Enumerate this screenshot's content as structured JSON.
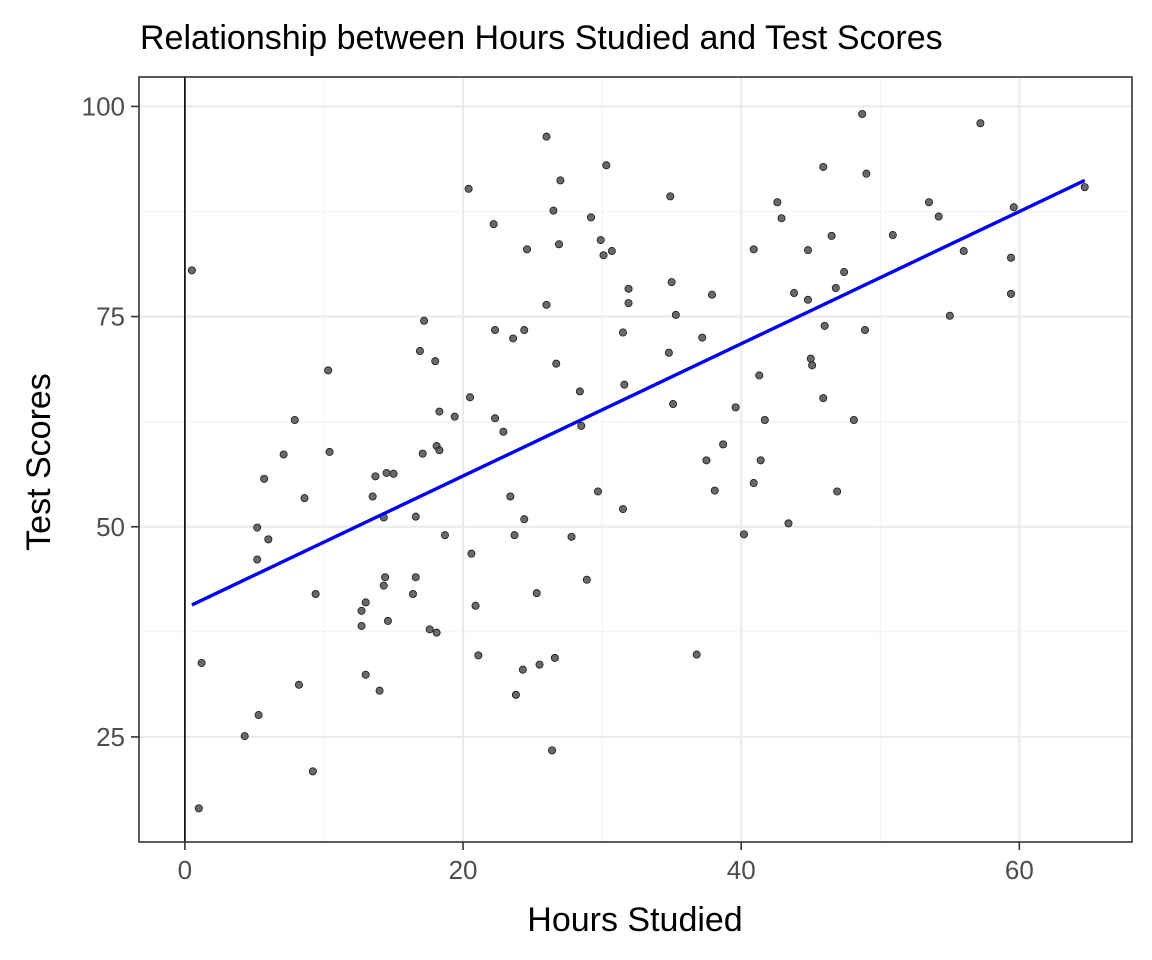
{
  "chart_data": {
    "type": "scatter",
    "title": "Relationship between Hours Studied and Test Scores",
    "xlabel": "Hours Studied",
    "ylabel": "Test Scores",
    "xlim": [
      -3.3,
      68.1
    ],
    "ylim": [
      12.5,
      103.5
    ],
    "x_ticks": [
      0,
      20,
      40,
      60
    ],
    "y_ticks": [
      25,
      50,
      75,
      100
    ],
    "grid": true,
    "legend": "none",
    "reference_vline_x": 0,
    "colors": {
      "points": "#4f4f4f",
      "fit_line": "#0000ff",
      "reference_line": "#000000"
    },
    "points": [
      [
        0.5,
        80.5
      ],
      [
        1.0,
        16.5
      ],
      [
        1.2,
        33.8
      ],
      [
        4.3,
        25.1
      ],
      [
        5.3,
        27.6
      ],
      [
        5.2,
        49.9
      ],
      [
        5.2,
        46.1
      ],
      [
        5.7,
        55.7
      ],
      [
        6.0,
        48.5
      ],
      [
        7.1,
        58.6
      ],
      [
        7.9,
        62.7
      ],
      [
        8.2,
        31.2
      ],
      [
        8.6,
        53.4
      ],
      [
        9.2,
        20.9
      ],
      [
        9.4,
        42.0
      ],
      [
        10.3,
        68.6
      ],
      [
        10.4,
        58.9
      ],
      [
        12.7,
        40.0
      ],
      [
        12.7,
        38.2
      ],
      [
        13.0,
        41.0
      ],
      [
        13.0,
        32.4
      ],
      [
        13.5,
        53.6
      ],
      [
        13.7,
        56.0
      ],
      [
        14.0,
        30.5
      ],
      [
        14.3,
        51.1
      ],
      [
        14.3,
        43.0
      ],
      [
        14.4,
        44.0
      ],
      [
        14.5,
        56.4
      ],
      [
        14.6,
        38.8
      ],
      [
        15.0,
        56.3
      ],
      [
        16.4,
        42.0
      ],
      [
        16.6,
        44.0
      ],
      [
        16.6,
        51.2
      ],
      [
        16.9,
        70.9
      ],
      [
        17.1,
        58.7
      ],
      [
        17.2,
        74.5
      ],
      [
        17.6,
        37.8
      ],
      [
        18.0,
        69.7
      ],
      [
        18.1,
        59.6
      ],
      [
        18.1,
        37.4
      ],
      [
        18.3,
        63.7
      ],
      [
        18.3,
        59.1
      ],
      [
        18.7,
        49.0
      ],
      [
        19.4,
        63.1
      ],
      [
        20.4,
        90.2
      ],
      [
        20.5,
        65.4
      ],
      [
        20.6,
        46.8
      ],
      [
        20.9,
        40.6
      ],
      [
        21.1,
        34.7
      ],
      [
        22.2,
        86.0
      ],
      [
        22.3,
        73.4
      ],
      [
        22.3,
        62.9
      ],
      [
        22.9,
        61.3
      ],
      [
        23.4,
        53.6
      ],
      [
        23.6,
        72.4
      ],
      [
        23.7,
        49.0
      ],
      [
        23.8,
        30.0
      ],
      [
        24.3,
        33.0
      ],
      [
        24.4,
        73.4
      ],
      [
        24.4,
        50.9
      ],
      [
        24.6,
        83.0
      ],
      [
        25.3,
        42.1
      ],
      [
        25.5,
        33.6
      ],
      [
        26.0,
        96.4
      ],
      [
        26.0,
        76.4
      ],
      [
        26.4,
        23.4
      ],
      [
        26.5,
        87.6
      ],
      [
        26.6,
        34.4
      ],
      [
        26.7,
        69.4
      ],
      [
        26.9,
        83.6
      ],
      [
        27.0,
        91.2
      ],
      [
        27.8,
        48.8
      ],
      [
        28.4,
        66.1
      ],
      [
        28.5,
        62.0
      ],
      [
        28.9,
        43.7
      ],
      [
        29.2,
        86.8
      ],
      [
        29.7,
        54.2
      ],
      [
        29.9,
        84.1
      ],
      [
        30.1,
        82.3
      ],
      [
        30.3,
        93.0
      ],
      [
        30.7,
        82.8
      ],
      [
        31.5,
        52.1
      ],
      [
        31.5,
        73.1
      ],
      [
        31.6,
        66.9
      ],
      [
        31.9,
        78.3
      ],
      [
        31.9,
        76.6
      ],
      [
        34.8,
        70.7
      ],
      [
        34.9,
        89.3
      ],
      [
        35.0,
        79.1
      ],
      [
        35.1,
        64.6
      ],
      [
        35.3,
        75.2
      ],
      [
        36.8,
        34.8
      ],
      [
        37.2,
        72.5
      ],
      [
        37.5,
        57.9
      ],
      [
        37.9,
        77.6
      ],
      [
        38.1,
        54.3
      ],
      [
        38.7,
        59.8
      ],
      [
        39.6,
        64.2
      ],
      [
        40.2,
        49.1
      ],
      [
        40.9,
        83.0
      ],
      [
        40.9,
        55.2
      ],
      [
        41.3,
        68.0
      ],
      [
        41.4,
        57.9
      ],
      [
        41.7,
        62.7
      ],
      [
        42.6,
        88.6
      ],
      [
        42.9,
        86.7
      ],
      [
        43.4,
        50.4
      ],
      [
        43.8,
        77.8
      ],
      [
        44.8,
        82.9
      ],
      [
        44.8,
        77.0
      ],
      [
        45.0,
        70.0
      ],
      [
        45.1,
        69.2
      ],
      [
        45.9,
        92.8
      ],
      [
        45.9,
        65.3
      ],
      [
        46.0,
        73.9
      ],
      [
        46.5,
        84.6
      ],
      [
        46.8,
        78.4
      ],
      [
        46.9,
        54.2
      ],
      [
        47.4,
        80.3
      ],
      [
        48.1,
        62.7
      ],
      [
        48.7,
        99.1
      ],
      [
        48.9,
        73.4
      ],
      [
        49.0,
        92.0
      ],
      [
        50.9,
        84.7
      ],
      [
        53.5,
        88.6
      ],
      [
        54.2,
        86.9
      ],
      [
        55.0,
        75.1
      ],
      [
        56.0,
        82.8
      ],
      [
        57.2,
        98.0
      ],
      [
        59.4,
        82.0
      ],
      [
        59.4,
        77.7
      ],
      [
        59.6,
        88.0
      ],
      [
        64.7,
        90.4
      ]
    ],
    "fit_line": {
      "x": [
        0.5,
        64.7
      ],
      "y": [
        40.7,
        91.2
      ]
    }
  }
}
